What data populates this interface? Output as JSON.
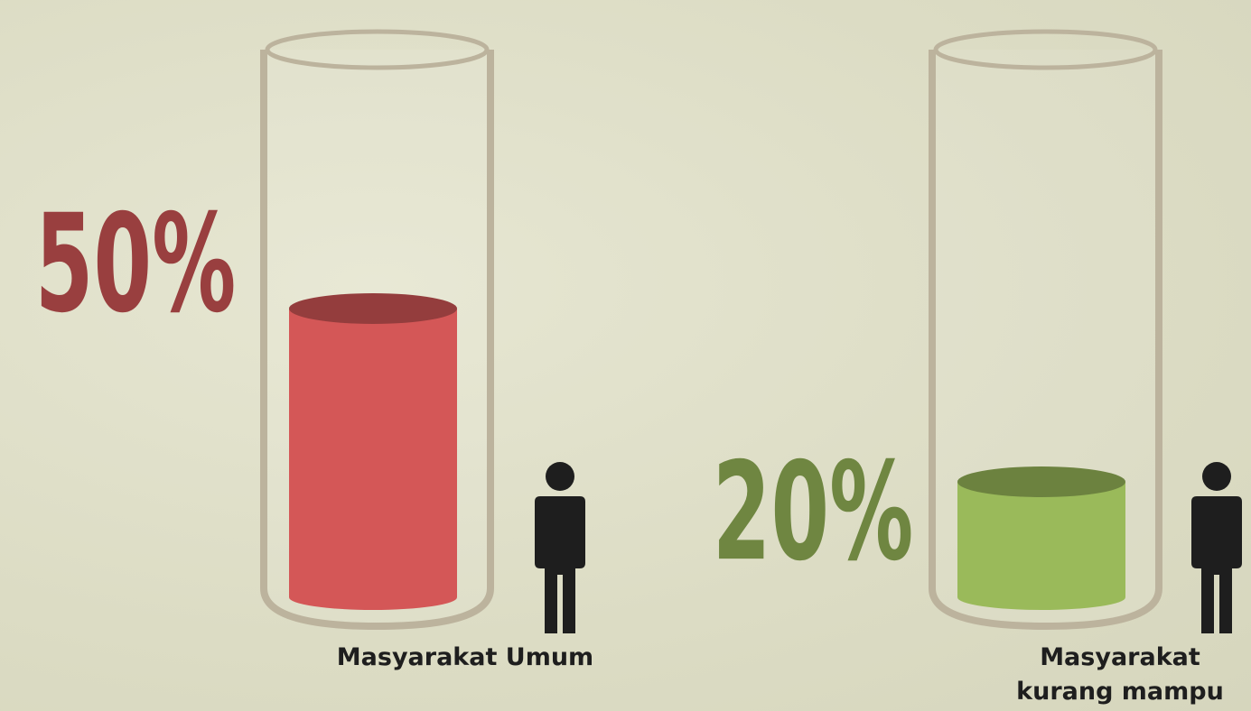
{
  "chart_data": {
    "type": "cylinder",
    "categories": [
      "Masyarakat Umum",
      "Masyarakat kurang mampu"
    ],
    "values": [
      50,
      20
    ],
    "value_labels": [
      "50%",
      "20%"
    ],
    "colors": [
      "#d45757",
      "#9aba5a"
    ]
  }
}
